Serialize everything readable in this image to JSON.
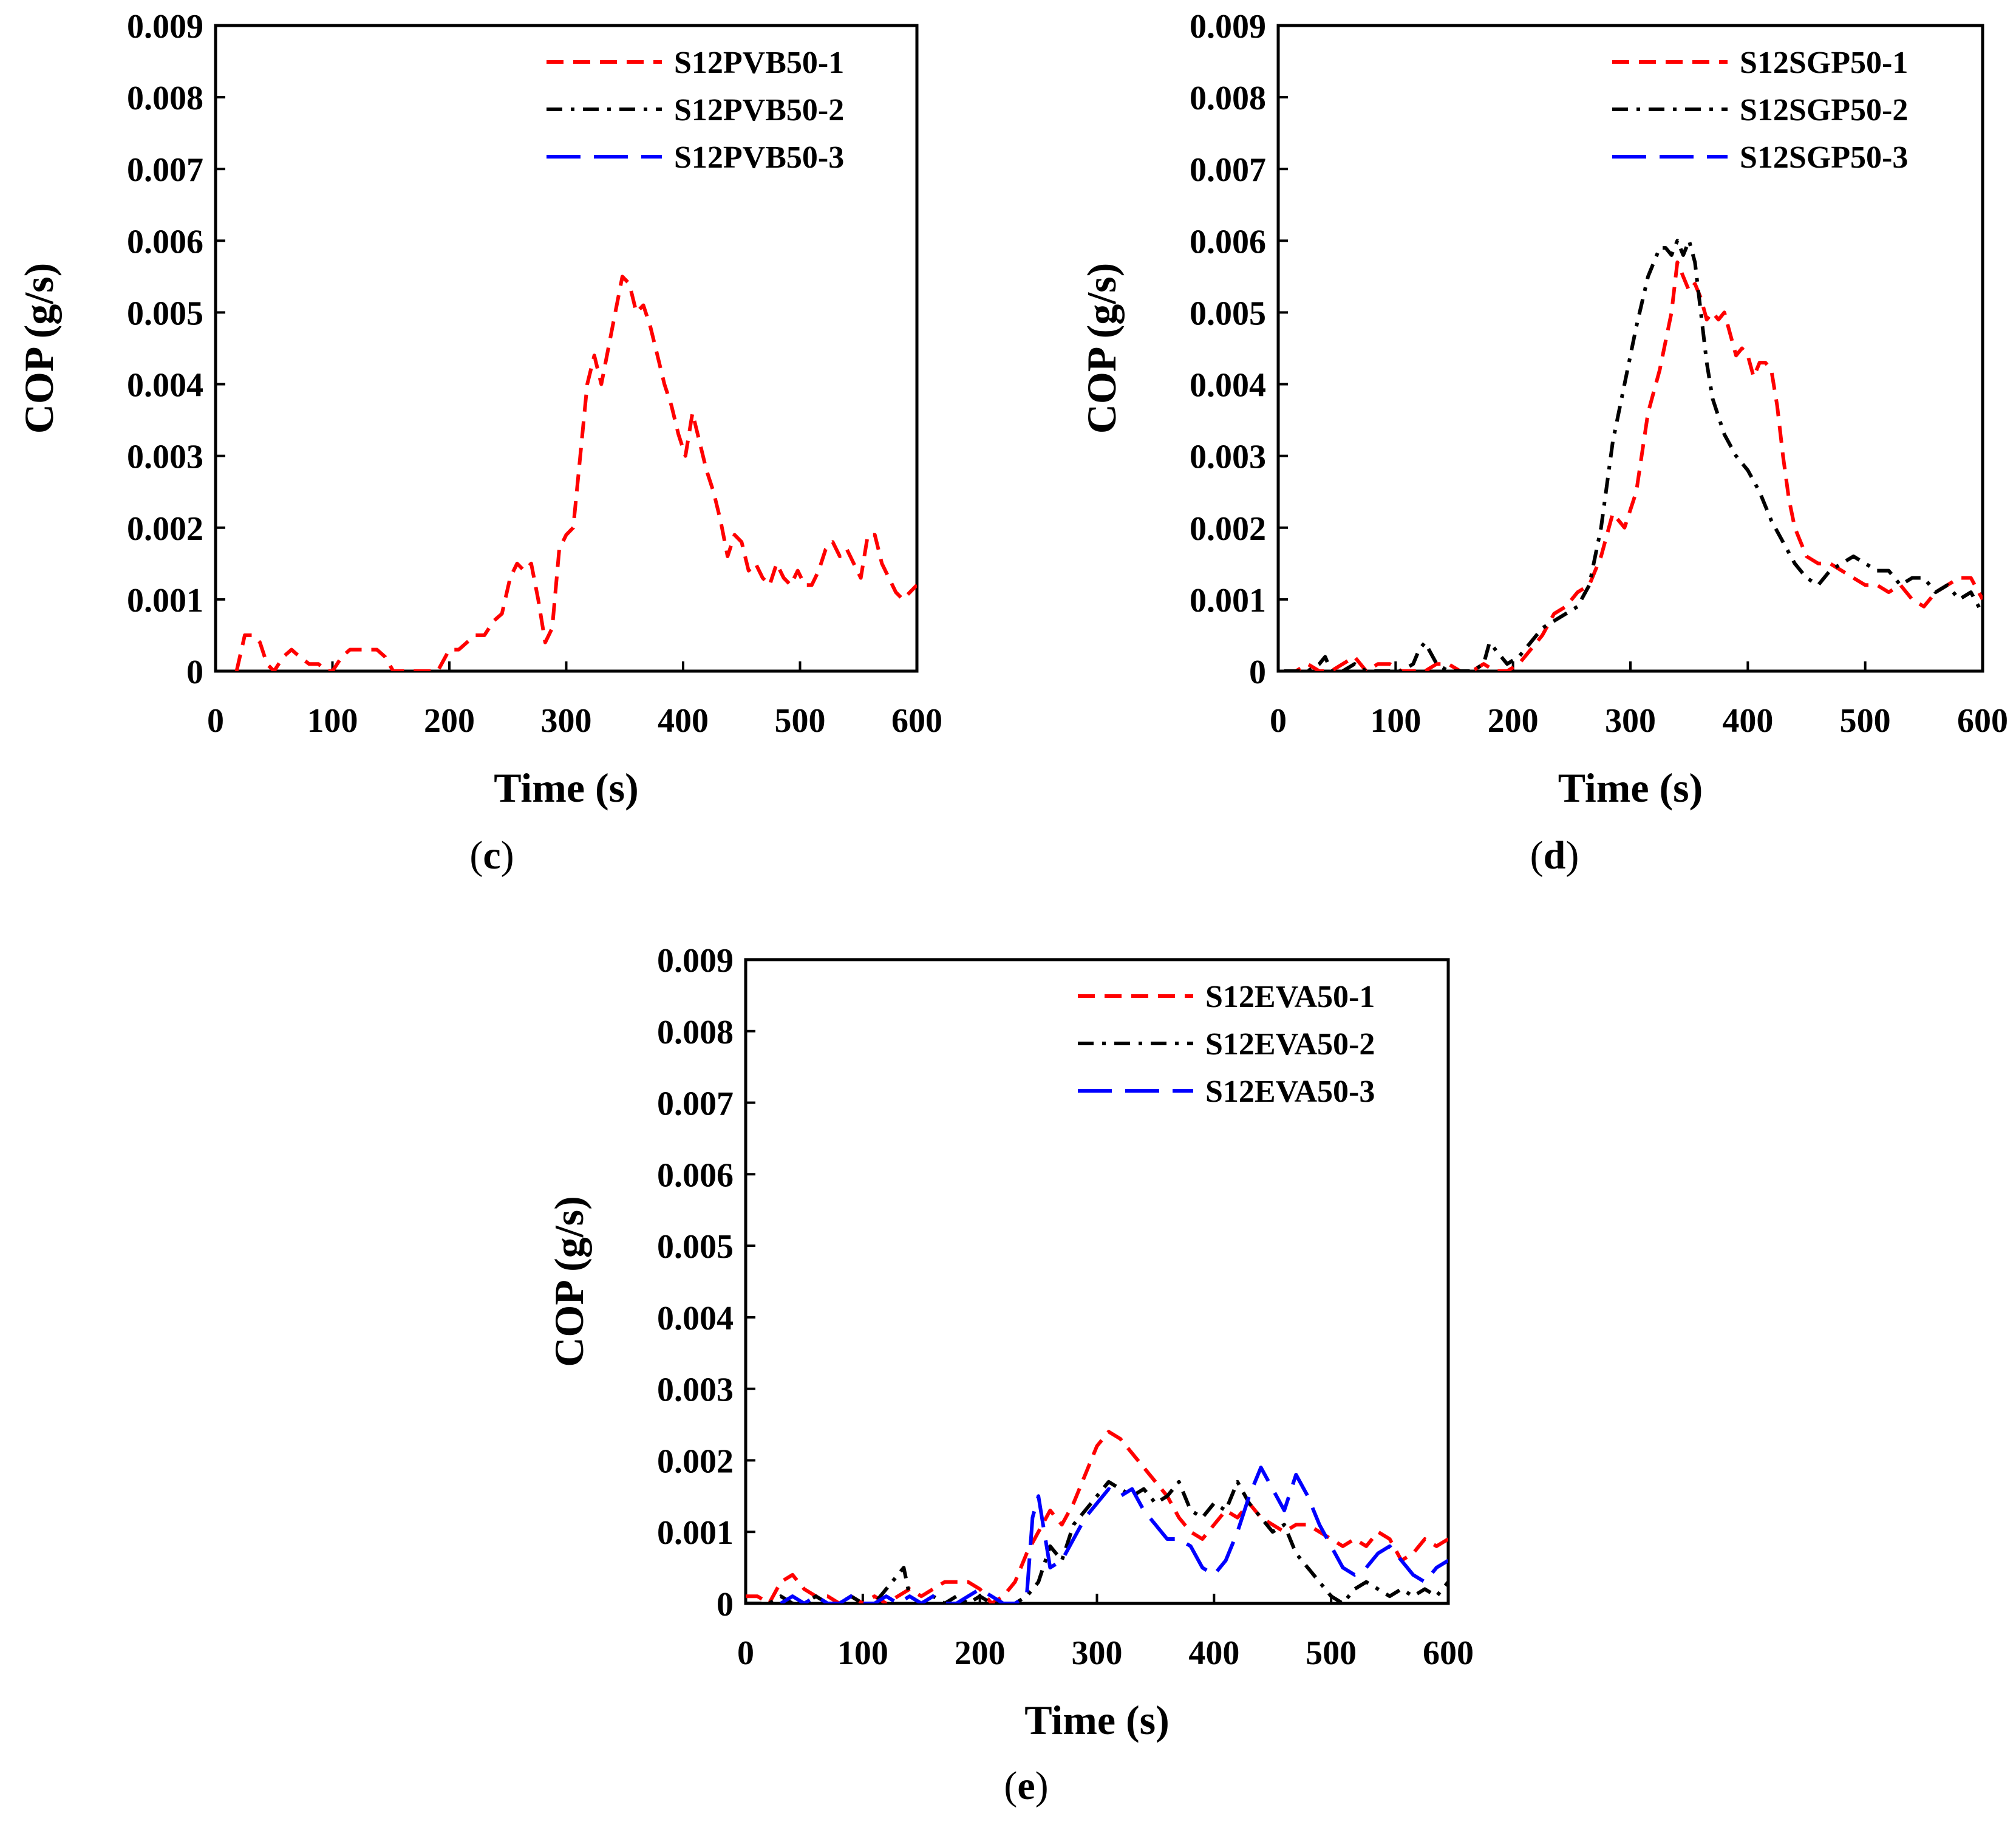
{
  "colors": {
    "s1": "#ff0000",
    "s2": "#000000",
    "s3": "#0000ff"
  },
  "chart_data": [
    {
      "type": "line",
      "panel_label": "c",
      "xlabel": "Time (s)",
      "ylabel": "COP (g/s)",
      "xlim": [
        0,
        600
      ],
      "ylim": [
        0,
        0.009
      ],
      "xticks": [
        "0",
        "100",
        "200",
        "300",
        "400",
        "500",
        "600"
      ],
      "yticks": [
        "0",
        "0.001",
        "0.002",
        "0.003",
        "0.004",
        "0.005",
        "0.006",
        "0.007",
        "0.008",
        "0.009"
      ],
      "legend_position": "top-right",
      "series": [
        {
          "name": "S12PVB50-1",
          "style": "dash",
          "color": "#ff0000",
          "x": [
            18,
            25,
            32,
            38,
            44,
            50,
            58,
            65,
            72,
            80,
            88,
            95,
            100,
            108,
            115,
            122,
            130,
            138,
            145,
            152,
            160,
            170,
            180,
            190,
            200,
            208,
            215,
            222,
            230,
            238,
            245,
            252,
            258,
            264,
            270,
            276,
            282,
            288,
            294,
            300,
            306,
            312,
            318,
            324,
            330,
            336,
            342,
            348,
            354,
            360,
            366,
            372,
            378,
            384,
            390,
            396,
            402,
            408,
            414,
            420,
            426,
            432,
            438,
            444,
            450,
            456,
            462,
            468,
            474,
            480,
            486,
            492,
            498,
            504,
            510,
            516,
            522,
            528,
            534,
            540,
            546,
            552,
            558,
            564,
            570,
            576,
            582,
            588,
            594,
            600
          ],
          "y": [
            0.0,
            0.0005,
            0.0005,
            0.0004,
            0.0001,
            0.0,
            0.0002,
            0.0003,
            0.0002,
            0.0001,
            0.0001,
            0.0,
            0.0,
            0.0002,
            0.0003,
            0.0003,
            0.0003,
            0.0003,
            0.0002,
            0.0,
            0.0,
            0.0,
            0.0,
            0.0,
            0.0003,
            0.0003,
            0.0004,
            0.0005,
            0.0005,
            0.0007,
            0.0008,
            0.0013,
            0.0015,
            0.0014,
            0.0015,
            0.001,
            0.0004,
            0.0006,
            0.0017,
            0.0019,
            0.002,
            0.003,
            0.004,
            0.0044,
            0.004,
            0.0045,
            0.005,
            0.0055,
            0.0054,
            0.005,
            0.0051,
            0.0048,
            0.0044,
            0.004,
            0.0037,
            0.0033,
            0.003,
            0.0036,
            0.0032,
            0.0028,
            0.0025,
            0.0021,
            0.0016,
            0.0019,
            0.0018,
            0.0014,
            0.0015,
            0.0013,
            0.0012,
            0.0015,
            0.0013,
            0.0012,
            0.0014,
            0.0012,
            0.0012,
            0.0014,
            0.0017,
            0.0018,
            0.0016,
            0.0017,
            0.0015,
            0.0013,
            0.0019,
            0.0019,
            0.0015,
            0.0013,
            0.0011,
            0.001,
            0.0011,
            0.0012
          ]
        },
        {
          "name": "S12PVB50-2",
          "style": "dashdot",
          "color": "#000000",
          "x": [],
          "y": []
        },
        {
          "name": "S12PVB50-3",
          "style": "longdash",
          "color": "#0000ff",
          "x": [],
          "y": []
        }
      ]
    },
    {
      "type": "line",
      "panel_label": "d",
      "xlabel": "Time (s)",
      "ylabel": "COP (g/s)",
      "xlim": [
        0,
        600
      ],
      "ylim": [
        0,
        0.009
      ],
      "xticks": [
        "0",
        "100",
        "200",
        "300",
        "400",
        "500",
        "600"
      ],
      "yticks": [
        "0",
        "0.001",
        "0.002",
        "0.003",
        "0.004",
        "0.005",
        "0.006",
        "0.007",
        "0.008",
        "0.009"
      ],
      "legend_position": "top-right",
      "series": [
        {
          "name": "S12SGP50-1",
          "style": "dash",
          "color": "#ff0000",
          "x": [
            5,
            15,
            25,
            35,
            45,
            55,
            65,
            75,
            85,
            95,
            105,
            115,
            125,
            135,
            145,
            155,
            165,
            175,
            185,
            195,
            205,
            215,
            225,
            235,
            245,
            255,
            265,
            275,
            285,
            295,
            305,
            315,
            325,
            335,
            340,
            345,
            350,
            355,
            360,
            365,
            370,
            375,
            380,
            385,
            390,
            395,
            400,
            405,
            410,
            415,
            420,
            425,
            430,
            435,
            440,
            445,
            450,
            460,
            470,
            480,
            490,
            500,
            510,
            520,
            530,
            540,
            550,
            560,
            570,
            580,
            590,
            600
          ],
          "y": [
            0.0,
            0.0,
            0.0001,
            0.0,
            0.0,
            0.0001,
            0.0002,
            0.0,
            0.0001,
            0.0001,
            0.0,
            0.0,
            0.0,
            0.0001,
            0.0001,
            0.0,
            0.0,
            0.0001,
            0.0,
            0.0,
            0.0001,
            0.0003,
            0.0005,
            0.0008,
            0.0009,
            0.0011,
            0.0012,
            0.0016,
            0.0022,
            0.002,
            0.0025,
            0.0036,
            0.0042,
            0.005,
            0.0057,
            0.0055,
            0.0053,
            0.0054,
            0.0052,
            0.0049,
            0.005,
            0.0049,
            0.005,
            0.0047,
            0.0044,
            0.0045,
            0.0044,
            0.0041,
            0.0043,
            0.0043,
            0.0042,
            0.0037,
            0.003,
            0.0024,
            0.002,
            0.0018,
            0.0016,
            0.0015,
            0.0015,
            0.0014,
            0.0013,
            0.0012,
            0.0012,
            0.0011,
            0.0012,
            0.001,
            0.0009,
            0.0011,
            0.0012,
            0.0013,
            0.0013,
            0.001
          ]
        },
        {
          "name": "S12SGP50-2",
          "style": "dashdot",
          "color": "#000000",
          "x": [
            5,
            15,
            25,
            35,
            40,
            45,
            55,
            65,
            75,
            85,
            95,
            105,
            115,
            120,
            125,
            135,
            145,
            155,
            165,
            175,
            180,
            185,
            195,
            205,
            215,
            225,
            235,
            245,
            255,
            265,
            275,
            285,
            295,
            305,
            315,
            325,
            330,
            335,
            340,
            345,
            350,
            355,
            360,
            365,
            370,
            380,
            390,
            400,
            410,
            420,
            430,
            440,
            450,
            460,
            470,
            480,
            490,
            500,
            510,
            520,
            530,
            540,
            550,
            560,
            570,
            580,
            590,
            600
          ],
          "y": [
            0.0,
            0.0,
            0.0,
            0.0001,
            0.0002,
            0.0,
            0.0,
            0.0001,
            0.0,
            0.0,
            0.0,
            0.0,
            0.0001,
            0.0003,
            0.0004,
            0.0001,
            0.0,
            0.0,
            0.0,
            0.0001,
            0.0004,
            0.0003,
            0.0001,
            0.0002,
            0.0004,
            0.0006,
            0.0007,
            0.0008,
            0.0009,
            0.0012,
            0.002,
            0.0032,
            0.004,
            0.0048,
            0.0055,
            0.0059,
            0.0059,
            0.0058,
            0.006,
            0.0058,
            0.006,
            0.0057,
            0.005,
            0.0043,
            0.0038,
            0.0033,
            0.003,
            0.0028,
            0.0025,
            0.0021,
            0.0018,
            0.0015,
            0.0013,
            0.0012,
            0.0014,
            0.0015,
            0.0016,
            0.0015,
            0.0014,
            0.0014,
            0.0012,
            0.0013,
            0.0013,
            0.0011,
            0.0012,
            0.001,
            0.0011,
            0.0008
          ]
        },
        {
          "name": "S12SGP50-3",
          "style": "longdash",
          "color": "#0000ff",
          "x": [],
          "y": []
        }
      ]
    },
    {
      "type": "line",
      "panel_label": "e",
      "xlabel": "Time (s)",
      "ylabel": "COP (g/s)",
      "xlim": [
        0,
        600
      ],
      "ylim": [
        0,
        0.009
      ],
      "xticks": [
        "0",
        "100",
        "200",
        "300",
        "400",
        "500",
        "600"
      ],
      "yticks": [
        "0",
        "0.001",
        "0.002",
        "0.003",
        "0.004",
        "0.005",
        "0.006",
        "0.007",
        "0.008",
        "0.009"
      ],
      "legend_position": "top-right",
      "series": [
        {
          "name": "S12EVA50-1",
          "style": "dash",
          "color": "#ff0000",
          "x": [
            0,
            10,
            20,
            30,
            40,
            50,
            60,
            70,
            80,
            90,
            100,
            110,
            120,
            130,
            140,
            150,
            160,
            170,
            180,
            190,
            200,
            210,
            220,
            230,
            240,
            250,
            260,
            270,
            280,
            290,
            300,
            310,
            320,
            330,
            340,
            350,
            360,
            370,
            380,
            390,
            400,
            410,
            420,
            430,
            440,
            450,
            460,
            470,
            480,
            490,
            500,
            510,
            520,
            530,
            540,
            550,
            560,
            570,
            580,
            590,
            600
          ],
          "y": [
            0.0001,
            0.0001,
            0.0,
            0.0003,
            0.0004,
            0.0002,
            0.0001,
            0.0001,
            0.0,
            0.0001,
            0.0,
            0.0001,
            0.0,
            0.0001,
            0.0002,
            0.0001,
            0.0002,
            0.0003,
            0.0003,
            0.0003,
            0.0002,
            0.0,
            0.0001,
            0.0003,
            0.0007,
            0.001,
            0.0013,
            0.0011,
            0.0014,
            0.0018,
            0.0022,
            0.0024,
            0.0023,
            0.0021,
            0.0019,
            0.0017,
            0.0015,
            0.0012,
            0.001,
            0.0009,
            0.0011,
            0.0013,
            0.0012,
            0.0014,
            0.0012,
            0.0011,
            0.001,
            0.0011,
            0.0011,
            0.001,
            0.0009,
            0.0008,
            0.0009,
            0.0008,
            0.001,
            0.0009,
            0.0006,
            0.0007,
            0.0009,
            0.0008,
            0.0009
          ]
        },
        {
          "name": "S12EVA50-2",
          "style": "dashdot",
          "color": "#000000",
          "x": [
            0,
            10,
            20,
            30,
            40,
            50,
            60,
            70,
            80,
            90,
            100,
            110,
            120,
            130,
            135,
            140,
            150,
            160,
            170,
            180,
            190,
            200,
            210,
            220,
            230,
            240,
            250,
            260,
            270,
            280,
            290,
            300,
            310,
            320,
            330,
            340,
            350,
            360,
            370,
            380,
            390,
            400,
            410,
            420,
            430,
            440,
            450,
            460,
            470,
            480,
            490,
            500,
            510,
            520,
            530,
            540,
            550,
            560,
            570,
            580,
            590,
            600
          ],
          "y": [
            0.0,
            0.0,
            0.0,
            0.0001,
            0.0,
            0.0,
            0.0001,
            0.0,
            0.0,
            0.0001,
            0.0,
            0.0,
            0.0002,
            0.0004,
            0.0005,
            0.0001,
            0.0,
            0.0001,
            0.0,
            0.0001,
            0.0,
            0.0001,
            0.0,
            0.0,
            0.0,
            0.0001,
            0.0003,
            0.0008,
            0.0006,
            0.0011,
            0.0013,
            0.0015,
            0.0017,
            0.0016,
            0.0015,
            0.0016,
            0.0014,
            0.0015,
            0.0017,
            0.0013,
            0.0012,
            0.0014,
            0.0013,
            0.0017,
            0.0014,
            0.0012,
            0.001,
            0.0011,
            0.0007,
            0.0005,
            0.0003,
            0.0001,
            0.0,
            0.0002,
            0.0003,
            0.0002,
            0.0001,
            0.0002,
            0.0001,
            0.0002,
            0.0001,
            0.0003
          ]
        },
        {
          "name": "S12EVA50-3",
          "style": "longdash",
          "color": "#0000ff",
          "x": [
            30,
            40,
            50,
            60,
            70,
            80,
            90,
            100,
            110,
            120,
            130,
            140,
            150,
            160,
            170,
            180,
            190,
            200,
            210,
            220,
            230,
            240,
            245,
            250,
            255,
            260,
            270,
            280,
            290,
            300,
            310,
            320,
            330,
            340,
            350,
            360,
            370,
            380,
            390,
            400,
            410,
            420,
            430,
            440,
            450,
            460,
            470,
            480,
            490,
            500,
            510,
            520,
            530,
            540,
            550,
            560,
            570,
            580,
            590,
            600
          ],
          "y": [
            0.0,
            0.0001,
            0.0,
            0.0001,
            0.0,
            0.0,
            0.0001,
            0.0,
            0.0,
            0.0001,
            0.0,
            0.0001,
            0.0,
            0.0001,
            0.0,
            0.0,
            0.0001,
            0.0002,
            0.0001,
            0.0,
            0.0,
            0.0001,
            0.0012,
            0.0015,
            0.001,
            0.0005,
            0.0006,
            0.0009,
            0.0012,
            0.0014,
            0.0016,
            0.0015,
            0.0016,
            0.0013,
            0.0011,
            0.0009,
            0.0009,
            0.0008,
            0.0005,
            0.0004,
            0.0006,
            0.001,
            0.0015,
            0.0019,
            0.0016,
            0.0013,
            0.0018,
            0.0015,
            0.0011,
            0.0008,
            0.0005,
            0.0004,
            0.0005,
            0.0007,
            0.0008,
            0.0006,
            0.0004,
            0.0003,
            0.0005,
            0.0006
          ]
        }
      ]
    }
  ]
}
